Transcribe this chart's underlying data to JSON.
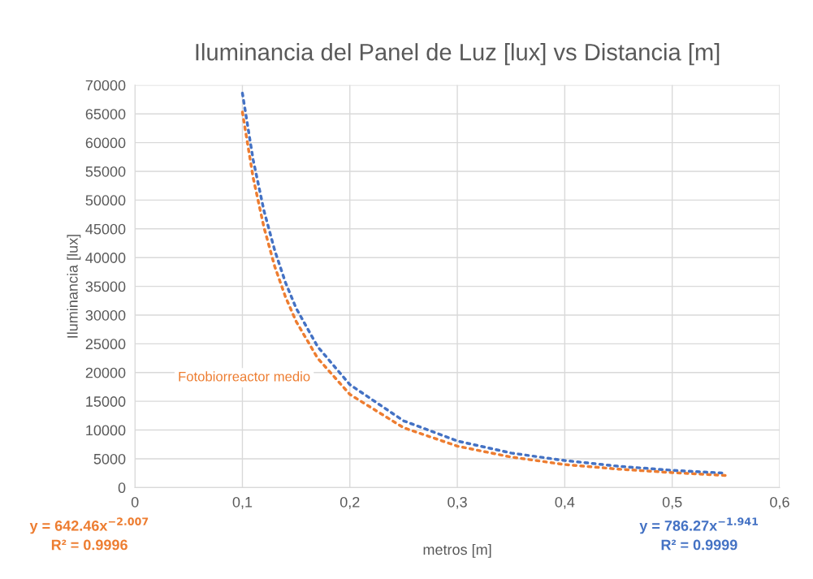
{
  "chart_data": {
    "type": "line",
    "title": "Iluminancia del Panel de Luz [lux] vs Distancia [m]",
    "xlabel": "metros [m]",
    "ylabel": "Iluminancia [lux]",
    "x": [
      0.1,
      0.11,
      0.12,
      0.13,
      0.14,
      0.15,
      0.17,
      0.2,
      0.25,
      0.3,
      0.35,
      0.4,
      0.45,
      0.5,
      0.55
    ],
    "series": [
      {
        "name": "Fotobiorreactor medio",
        "color": "#ed7d31",
        "values": [
          65300,
          53900,
          45300,
          38500,
          33200,
          28900,
          22500,
          16200,
          10400,
          7200,
          5300,
          4000,
          3200,
          2600,
          2100
        ]
      },
      {
        "color": "#4472c4",
        "values": [
          68600,
          57000,
          48200,
          41300,
          35700,
          31200,
          24500,
          17900,
          11600,
          8100,
          6000,
          4700,
          3700,
          3000,
          2500
        ]
      }
    ],
    "annotations": [
      "y = 642.46x$^{−2.007}$\nR² = 0.9996",
      "y = 786.27x$^{−1.941}$\nR² = 0.9999"
    ],
    "xlim": [
      0,
      0.6
    ],
    "xticks": [
      0,
      {
        "value": 0.1,
        "label": "0,1"
      },
      {
        "value": 0.2,
        "label": "0,2"
      },
      {
        "value": 0.3,
        "label": "0,3"
      },
      {
        "value": 0.4,
        "label": "0,4"
      },
      {
        "value": 0.5,
        "label": "0,5"
      },
      {
        "value": 0.6,
        "label": "0,6"
      }
    ],
    "ylim": [
      0,
      70000
    ],
    "yticks": [
      0,
      5000,
      10000,
      15000,
      20000,
      25000,
      30000,
      35000,
      40000,
      45000,
      50000,
      55000,
      60000,
      65000,
      70000
    ],
    "grid": true,
    "legend": false,
    "marker": "none",
    "line_style": "dotted"
  }
}
